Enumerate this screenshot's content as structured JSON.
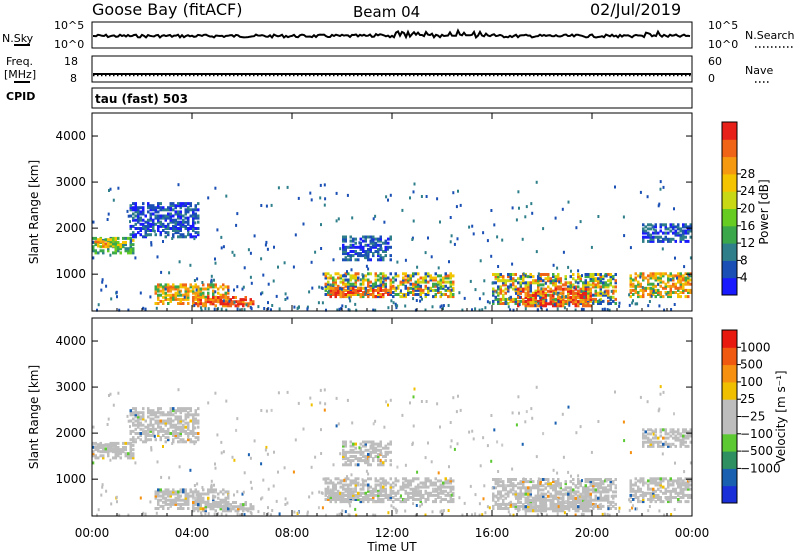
{
  "header": {
    "station": "Goose Bay (fitACF)",
    "beam": "Beam 04",
    "date": "02/Jul/2019"
  },
  "side_labels": {
    "nsky": "N.Sky",
    "nsearch": "N.Search",
    "freq_line1": "Freq.",
    "freq_line2": "[MHz]",
    "nave": "Nave",
    "cpid": "CPID",
    "cpid_value": "tau (fast) 503"
  },
  "strips": {
    "noise": {
      "left_ticks": [
        "10^5",
        "10^0"
      ],
      "right_ticks": [
        "10^5",
        "10^0"
      ]
    },
    "freq": {
      "left_ticks": [
        "18",
        "8"
      ],
      "right_ticks": [
        "60",
        "0"
      ]
    }
  },
  "chart_data": [
    {
      "type": "heatmap",
      "panel": "power",
      "ylabel": "Slant Range [km]",
      "xlabel": "",
      "x_ticks": [
        "00:00",
        "04:00",
        "08:00",
        "12:00",
        "16:00",
        "20:00",
        "00:00"
      ],
      "y_ticks": [
        1000,
        2000,
        3000,
        4000
      ],
      "xlim_hours": [
        0,
        24
      ],
      "ylim_km": [
        200,
        4500
      ],
      "colorbar": {
        "label": "Power [dB]",
        "ticks": [
          "4",
          "8",
          "12",
          "16",
          "20",
          "24",
          "28"
        ],
        "colors": [
          "#1a1aff",
          "#1a4fb5",
          "#2f7f8a",
          "#3aa84a",
          "#66cc22",
          "#c8d814",
          "#f5c400",
          "#f59a10",
          "#f06418",
          "#e8201a"
        ]
      },
      "regions": [
        {
          "t": [
            0.0,
            1.7
          ],
          "r": [
            1450,
            1800
          ],
          "band": "green"
        },
        {
          "t": [
            1.5,
            4.3
          ],
          "r": [
            1800,
            2550
          ],
          "band": "blue"
        },
        {
          "t": [
            0.1,
            1.0
          ],
          "r": [
            1600,
            1750
          ],
          "band": "orange"
        },
        {
          "t": [
            2.5,
            5.5
          ],
          "r": [
            350,
            800
          ],
          "band": "orange"
        },
        {
          "t": [
            4.0,
            6.5
          ],
          "r": [
            300,
            500
          ],
          "band": "red"
        },
        {
          "t": [
            9.3,
            14.5
          ],
          "r": [
            500,
            1000
          ],
          "band": "yellow"
        },
        {
          "t": [
            9.5,
            12.0
          ],
          "r": [
            500,
            700
          ],
          "band": "red"
        },
        {
          "t": [
            10.0,
            12.0
          ],
          "r": [
            1300,
            1800
          ],
          "band": "blue"
        },
        {
          "t": [
            16.0,
            21.0
          ],
          "r": [
            350,
            1000
          ],
          "band": "yellow"
        },
        {
          "t": [
            17.0,
            20.0
          ],
          "r": [
            300,
            700
          ],
          "band": "red"
        },
        {
          "t": [
            21.5,
            24.0
          ],
          "r": [
            500,
            1000
          ],
          "band": "orange"
        },
        {
          "t": [
            22.0,
            24.0
          ],
          "r": [
            1700,
            2100
          ],
          "band": "blue"
        }
      ]
    },
    {
      "type": "heatmap",
      "panel": "velocity",
      "ylabel": "Slant Range [km]",
      "xlabel": "Time UT",
      "x_ticks": [
        "00:00",
        "04:00",
        "08:00",
        "12:00",
        "16:00",
        "20:00",
        "00:00"
      ],
      "y_ticks": [
        1000,
        2000,
        3000,
        4000
      ],
      "xlim_hours": [
        0,
        24
      ],
      "ylim_km": [
        200,
        4500
      ],
      "colorbar": {
        "label": "Velocity [m s⁻¹]",
        "ticks": [
          "1000",
          "500",
          "100",
          "25",
          "−25",
          "−100",
          "−500",
          "−1000"
        ],
        "colors": [
          "#1a2fd8",
          "#1a60b0",
          "#2e8f60",
          "#5cc832",
          "#bdbdbd",
          "#bdbdbd",
          "#f0c000",
          "#f59010",
          "#f05a10",
          "#e81a10"
        ]
      }
    }
  ]
}
